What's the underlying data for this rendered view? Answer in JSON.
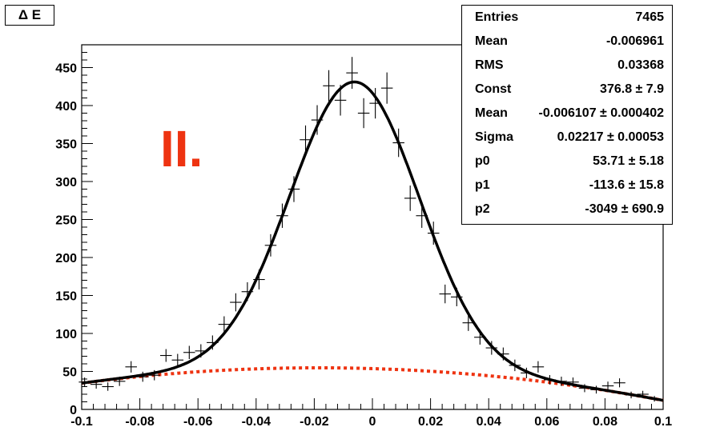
{
  "chart_data": {
    "type": "scatter",
    "title": "Δ E",
    "xlim": [
      -0.1,
      0.1
    ],
    "ylim": [
      0,
      480
    ],
    "x_ticks": [
      "-0.1",
      "-0.08",
      "-0.06",
      "-0.04",
      "-0.02",
      "0",
      "0.02",
      "0.04",
      "0.06",
      "0.08",
      "0.1"
    ],
    "y_ticks": [
      "50",
      "100",
      "150",
      "200",
      "250",
      "300",
      "350",
      "400",
      "450"
    ],
    "annotation": "II.",
    "stats": [
      {
        "name": "Entries",
        "value": "7465"
      },
      {
        "name": "Mean",
        "value": "-0.006961"
      },
      {
        "name": "RMS",
        "value": "0.03368"
      },
      {
        "name": "Const",
        "value": "376.8 ± 7.9"
      },
      {
        "name": "Mean",
        "value": "-0.006107 ± 0.000402"
      },
      {
        "name": "Sigma",
        "value": "0.02217 ± 0.00053"
      },
      {
        "name": "p0",
        "value": "53.71 ± 5.18"
      },
      {
        "name": "p1",
        "value": "-113.6 ± 15.8"
      },
      {
        "name": "p2",
        "value": "-3049 ± 690.9"
      }
    ],
    "fit": {
      "const": 376.8,
      "mean": -0.006107,
      "sigma": 0.02217,
      "p0": 53.71,
      "p1": -113.6,
      "p2": -3049
    },
    "series": [
      {
        "x": [
          -0.099,
          -0.095,
          -0.091,
          -0.087,
          -0.083,
          -0.079,
          -0.075,
          -0.071,
          -0.067,
          -0.063,
          -0.059,
          -0.055,
          -0.051,
          -0.047,
          -0.043,
          -0.039,
          -0.035,
          -0.031,
          -0.027,
          -0.023,
          -0.019,
          -0.015,
          -0.011,
          -0.007,
          -0.003,
          0.001,
          0.005,
          0.009,
          0.013,
          0.017,
          0.021,
          0.025,
          0.029,
          0.033,
          0.037,
          0.041,
          0.045,
          0.049,
          0.053,
          0.057,
          0.061,
          0.065,
          0.069,
          0.073,
          0.077,
          0.081,
          0.085,
          0.089,
          0.093,
          0.097
        ],
        "y": [
          36,
          33,
          30,
          37,
          56,
          43,
          45,
          71,
          65,
          75,
          77,
          88,
          112,
          141,
          155,
          171,
          216,
          255,
          290,
          355,
          381,
          426,
          407,
          443,
          390,
          403,
          423,
          351,
          278,
          255,
          232,
          152,
          148,
          114,
          95,
          81,
          73,
          58,
          48,
          56,
          39,
          37,
          36,
          28,
          26,
          31,
          35,
          19,
          20,
          14
        ],
        "yerr": [
          6,
          5.7,
          5.5,
          6.1,
          7.5,
          6.6,
          6.7,
          8.4,
          8.1,
          8.7,
          8.8,
          9.4,
          10.6,
          11.9,
          12.4,
          13.1,
          14.7,
          16,
          17,
          18.8,
          19.5,
          20.6,
          20.2,
          21,
          19.7,
          20.1,
          20.6,
          18.7,
          16.7,
          16,
          15.2,
          12.3,
          12.2,
          10.7,
          9.7,
          9,
          8.5,
          7.6,
          6.9,
          7.5,
          6.2,
          6.1,
          6,
          5.3,
          5.1,
          5.6,
          5.9,
          4.4,
          4.5,
          3.7
        ]
      }
    ]
  }
}
